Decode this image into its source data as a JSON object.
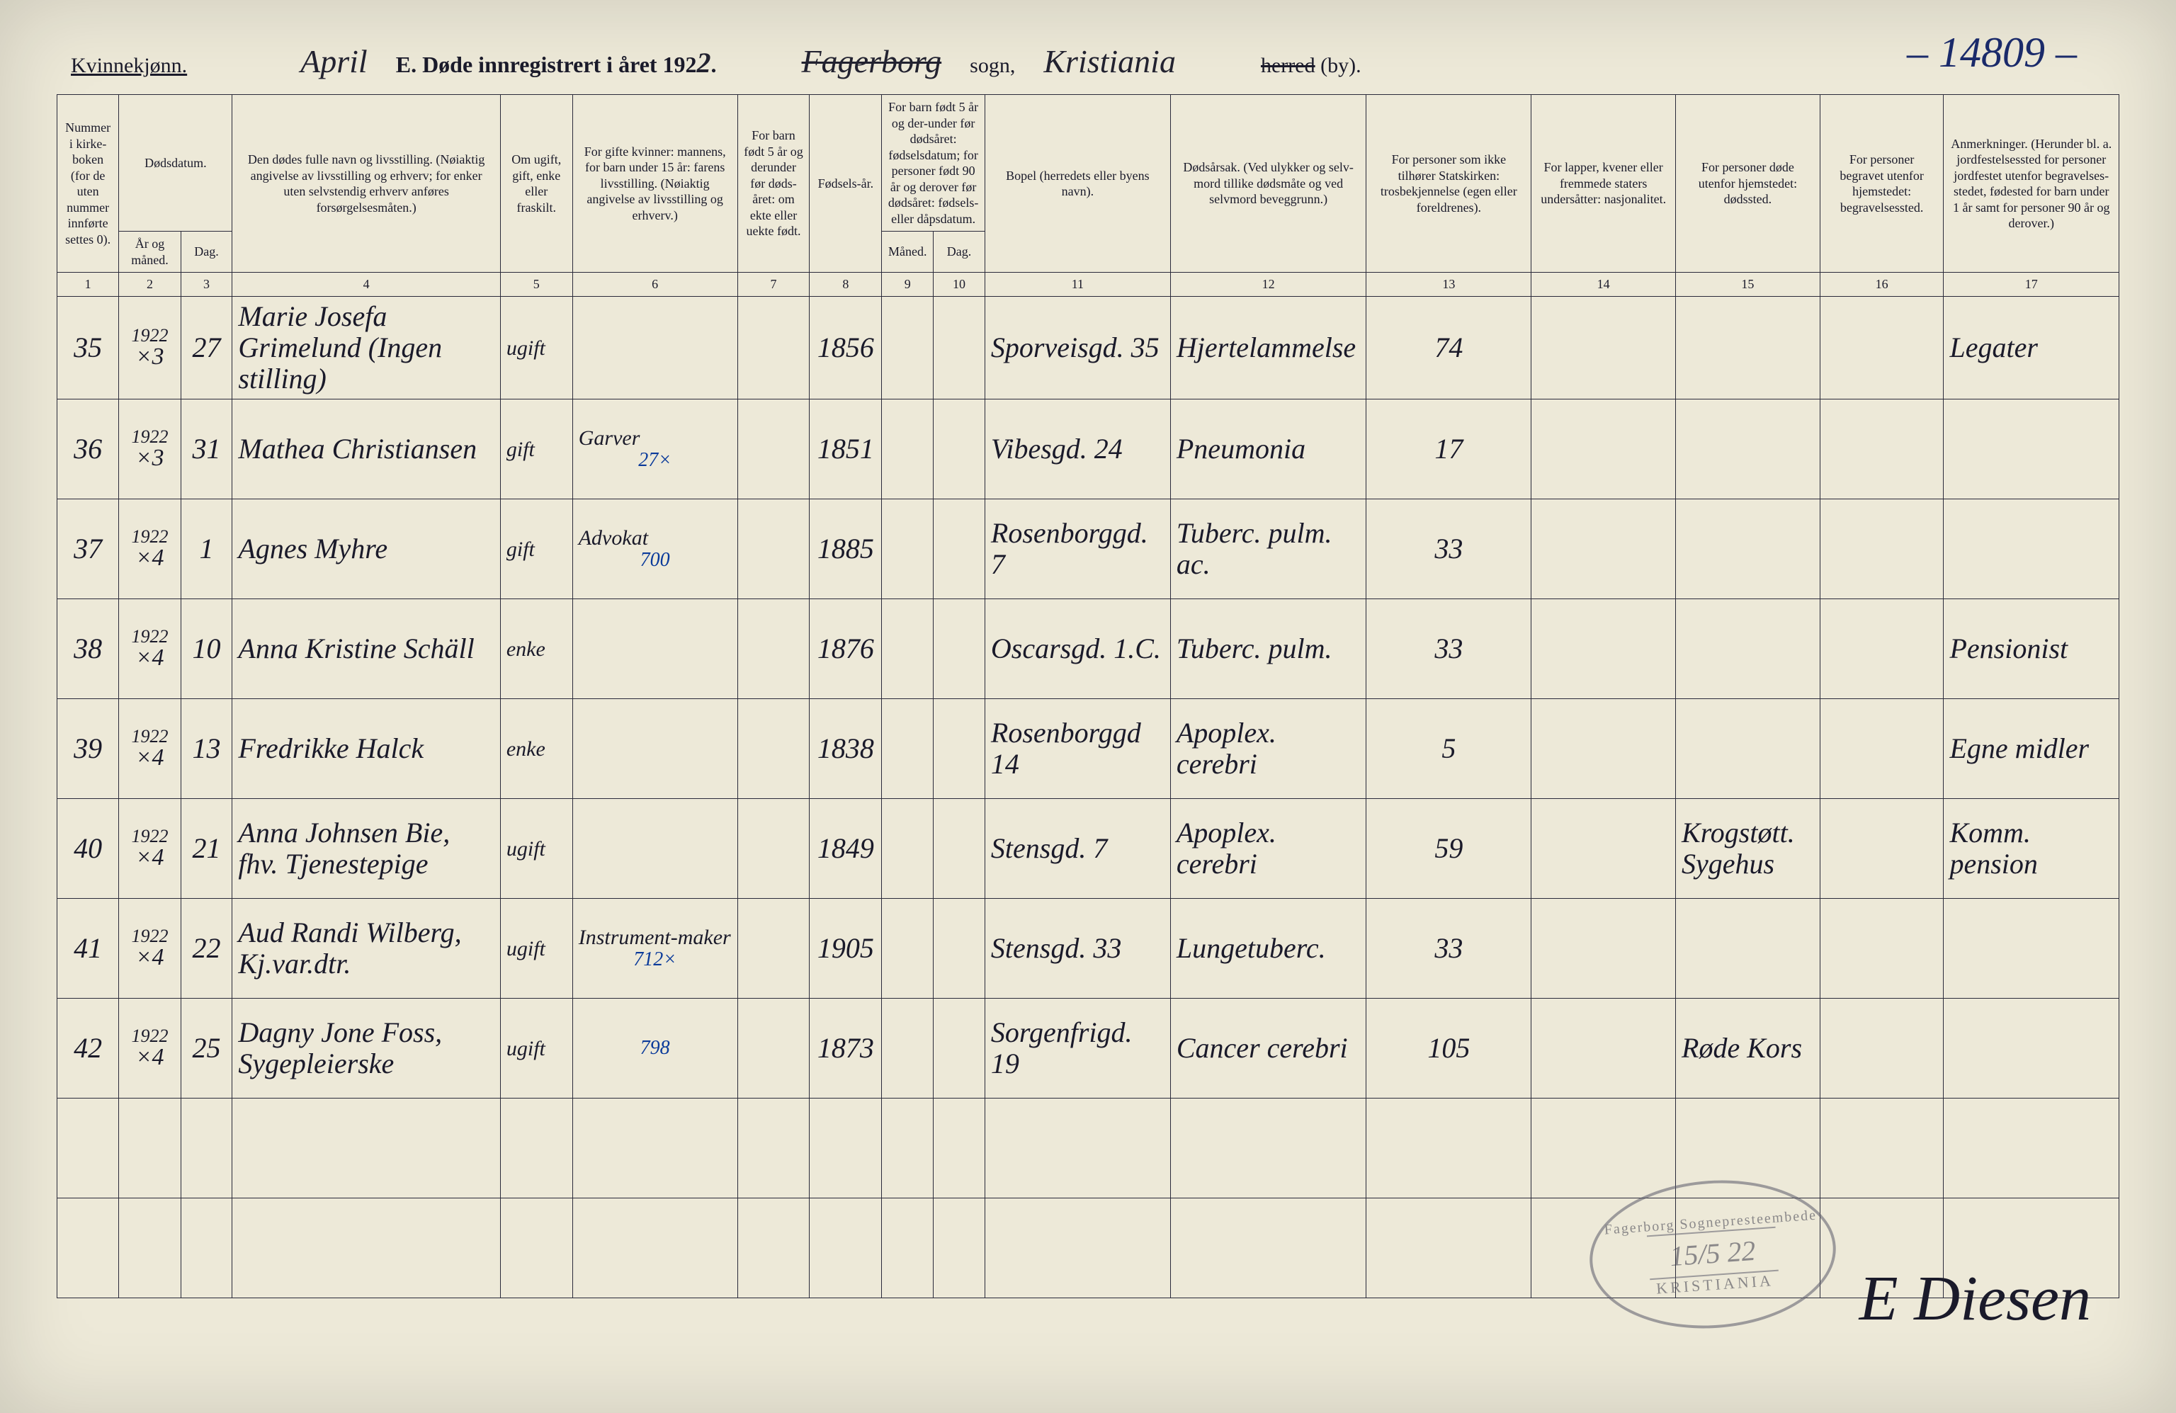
{
  "header": {
    "gender": "Kvinnekjønn.",
    "month": "April",
    "title_prefix": "E.  Døde innregistrert i året 192",
    "year_digit": "2",
    "period": ".",
    "parish": "Fagerborg",
    "sogn_label": "sogn,",
    "city": "Kristiania",
    "herred_strike": "herred",
    "by_label": "(by).",
    "page_number": "– 14809 –"
  },
  "columns": {
    "c1_a": "Nummer i kirke-boken",
    "c1_b": "(for de uten nummer innførte settes 0).",
    "c2": "Dødsdatum.",
    "c2a": "År og måned.",
    "c2b": "Dag.",
    "c4": "Den dødes fulle navn og livsstilling. (Nøiaktig angivelse av livsstilling og erhverv; for enker uten selvstendig erhverv anføres forsørgelsesmåten.)",
    "c5": "Om ugift, gift, enke eller fraskilt.",
    "c6": "For gifte kvinner: mannens, for barn under 15 år: farens livsstilling. (Nøiaktig angivelse av livsstilling og erhverv.)",
    "c7": "For barn født 5 år og derunder før døds-året: om ekte eller uekte født.",
    "c8": "Fødsels-år.",
    "c9": "For barn født 5 år og der-under før dødsåret: fødselsdatum; for personer født 90 år og derover før dødsåret: fødsels- eller dåpsdatum.",
    "c9a": "Måned.",
    "c9b": "Dag.",
    "c11": "Bopel (herredets eller byens navn).",
    "c12": "Dødsårsak. (Ved ulykker og selv-mord tillike dødsmåte og ved selvmord beveggrunn.)",
    "c13": "For personer som ikke tilhører Statskirken: trosbekjennelse (egen eller foreldrenes).",
    "c14": "For lapper, kvener eller fremmede staters undersåtter: nasjonalitet.",
    "c15": "For personer døde utenfor hjemstedet: dødssted.",
    "c16": "For personer begravet utenfor hjemstedet: begravelsessted.",
    "c17": "Anmerkninger. (Herunder bl. a. jordfestelsessted for personer jordfestet utenfor begravelses-stedet, fødested for barn under 1 år samt for personer 90 år og derover.)"
  },
  "colnums": [
    "1",
    "2",
    "3",
    "4",
    "5",
    "6",
    "7",
    "8",
    "9",
    "10",
    "11",
    "12",
    "13",
    "14",
    "15",
    "16",
    "17"
  ],
  "rows": [
    {
      "num": "35",
      "year": "1922",
      "xmo": "3",
      "day": "27",
      "name": "Marie Josefa Grimelund (Ingen stilling)",
      "status": "ugift",
      "spouse": "",
      "c7": "",
      "birth": "1856",
      "addr": "Sporveisgd. 35",
      "cause": "Hjertelammelse",
      "c13": "74",
      "c15": "",
      "c17": "Legater"
    },
    {
      "num": "36",
      "year": "1922",
      "xmo": "3",
      "day": "31",
      "name": "Mathea Christiansen",
      "status": "gift",
      "spouse": "Garver",
      "spouse_note": "27×",
      "c7": "",
      "birth": "1851",
      "addr": "Vibesgd. 24",
      "cause": "Pneumonia",
      "c13": "17",
      "c15": "",
      "c17": ""
    },
    {
      "num": "37",
      "year": "1922",
      "xmo": "4",
      "day": "1",
      "name": "Agnes Myhre",
      "status": "gift",
      "spouse": "Advokat",
      "spouse_note": "700",
      "c7": "",
      "birth": "1885",
      "addr": "Rosenborggd. 7",
      "cause": "Tuberc. pulm. ac.",
      "c13": "33",
      "c15": "",
      "c17": ""
    },
    {
      "num": "38",
      "year": "1922",
      "xmo": "4",
      "day": "10",
      "name": "Anna Kristine Schäll",
      "status": "enke",
      "spouse": "",
      "c7": "",
      "birth": "1876",
      "addr": "Oscarsgd. 1.C.",
      "cause": "Tuberc. pulm.",
      "c13": "33",
      "c15": "",
      "c17": "Pensionist"
    },
    {
      "num": "39",
      "year": "1922",
      "xmo": "4",
      "day": "13",
      "name": "Fredrikke Halck",
      "status": "enke",
      "spouse": "",
      "c7": "",
      "birth": "1838",
      "addr": "Rosenborggd 14",
      "cause": "Apoplex. cerebri",
      "c13": "5",
      "c15": "",
      "c17": "Egne midler"
    },
    {
      "num": "40",
      "year": "1922",
      "xmo": "4",
      "day": "21",
      "name": "Anna Johnsen Bie, fhv. Tjenestepige",
      "status": "ugift",
      "spouse": "",
      "c7": "",
      "birth": "1849",
      "addr": "Stensgd. 7",
      "cause": "Apoplex. cerebri",
      "c13": "59",
      "c15": "Krogstøtt. Sygehus",
      "c17": "Komm. pension"
    },
    {
      "num": "41",
      "year": "1922",
      "xmo": "4",
      "day": "22",
      "name": "Aud Randi Wilberg, Kj.var.dtr.",
      "status": "ugift",
      "spouse": "Instrument-maker",
      "spouse_note": "712×",
      "c7": "",
      "birth": "1905",
      "addr": "Stensgd. 33",
      "cause": "Lungetuberc.",
      "c13": "33",
      "c15": "",
      "c17": ""
    },
    {
      "num": "42",
      "year": "1922",
      "xmo": "4",
      "day": "25",
      "name": "Dagny Jone Foss, Sygepleierske",
      "status": "ugift",
      "spouse": "",
      "spouse_note": "798",
      "c7": "",
      "birth": "1873",
      "addr": "Sorgenfrigd. 19",
      "cause": "Cancer cerebri",
      "c13": "105",
      "c15": "Røde Kors",
      "c17": ""
    },
    {
      "num": "",
      "year": "",
      "xmo": "",
      "day": "",
      "name": "",
      "status": "",
      "spouse": "",
      "c7": "",
      "birth": "",
      "addr": "",
      "cause": "",
      "c13": "",
      "c15": "",
      "c17": ""
    },
    {
      "num": "",
      "year": "",
      "xmo": "",
      "day": "",
      "name": "",
      "status": "",
      "spouse": "",
      "c7": "",
      "birth": "",
      "addr": "",
      "cause": "",
      "c13": "",
      "c15": "",
      "c17": ""
    }
  ],
  "stamp": {
    "top": "Fagerborg Sognepresteembede",
    "date": "15/5 22",
    "bottom": "KRISTIANIA"
  },
  "signature": "E Diesen",
  "style": {
    "bg": "#ede9d8",
    "ink": "#1a1a2a",
    "blue_ink": "#0a3a9a",
    "border": "#2a2a3a",
    "printed_font_size_pt": 14,
    "script_font_size_pt": 30,
    "col_widths_pct": [
      3.0,
      3.0,
      2.5,
      13.0,
      3.5,
      8.0,
      3.5,
      3.5,
      2.5,
      2.5,
      9.0,
      9.5,
      8.0,
      7.0,
      7.0,
      6.0,
      8.5
    ]
  }
}
